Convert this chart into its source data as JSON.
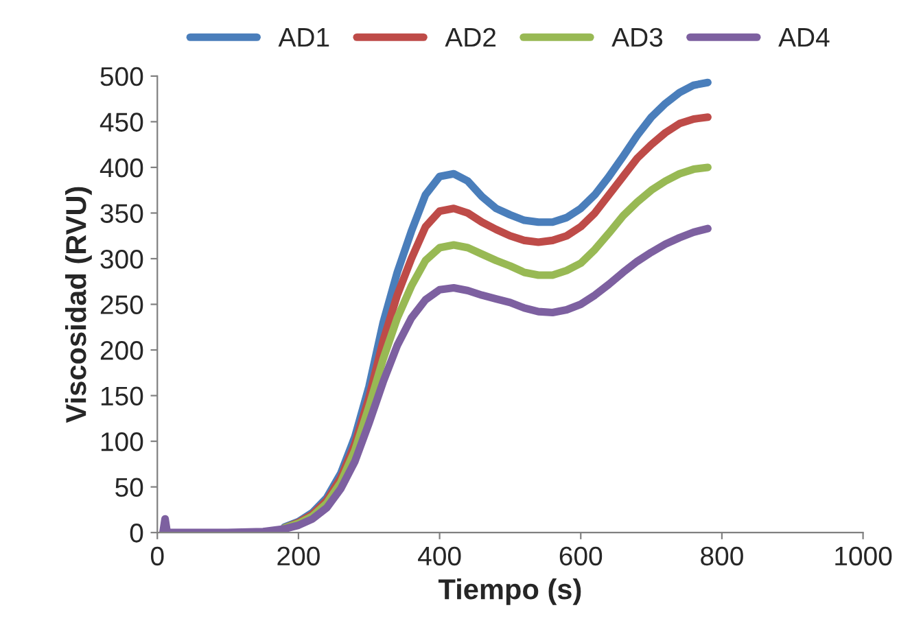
{
  "chart_data": {
    "type": "line",
    "xlabel": "Tiempo (s)",
    "ylabel": "Viscosidad (RVU)",
    "x": [
      180,
      200,
      220,
      240,
      260,
      280,
      300,
      320,
      340,
      360,
      380,
      400,
      420,
      440,
      460,
      480,
      500,
      520,
      540,
      560,
      580,
      600,
      620,
      640,
      660,
      680,
      700,
      720,
      740,
      760,
      780
    ],
    "series": [
      {
        "name": "AD1",
        "color": "#4a7ebb",
        "values": [
          6,
          12,
          22,
          38,
          65,
          105,
          160,
          230,
          285,
          330,
          370,
          390,
          393,
          385,
          368,
          355,
          348,
          342,
          340,
          340,
          345,
          355,
          370,
          390,
          412,
          435,
          455,
          470,
          482,
          490,
          493
        ]
      },
      {
        "name": "AD2",
        "color": "#be4b48",
        "values": [
          5,
          11,
          20,
          35,
          60,
          97,
          148,
          210,
          260,
          300,
          335,
          352,
          355,
          350,
          340,
          332,
          325,
          320,
          318,
          320,
          325,
          335,
          350,
          370,
          390,
          410,
          425,
          438,
          448,
          453,
          455
        ]
      },
      {
        "name": "AD3",
        "color": "#98b954",
        "values": [
          5,
          10,
          18,
          32,
          55,
          90,
          138,
          190,
          235,
          270,
          298,
          312,
          315,
          312,
          305,
          298,
          292,
          285,
          282,
          282,
          287,
          295,
          310,
          328,
          347,
          362,
          375,
          385,
          393,
          398,
          400
        ]
      },
      {
        "name": "AD4",
        "color": "#7d60a0",
        "x": [
          8,
          11,
          14,
          20,
          100,
          150,
          180,
          200,
          220,
          240,
          260,
          280,
          300,
          320,
          340,
          360,
          380,
          400,
          420,
          440,
          460,
          480,
          500,
          520,
          540,
          560,
          580,
          600,
          620,
          640,
          660,
          680,
          700,
          720,
          740,
          760,
          780
        ],
        "values": [
          0,
          15,
          0,
          0,
          0,
          1,
          4,
          8,
          15,
          27,
          48,
          78,
          120,
          165,
          205,
          235,
          255,
          266,
          268,
          265,
          260,
          256,
          252,
          246,
          242,
          241,
          244,
          250,
          260,
          272,
          285,
          297,
          307,
          316,
          323,
          329,
          333
        ]
      }
    ],
    "xlim": [
      0,
      1000
    ],
    "xticks": [
      0,
      200,
      400,
      600,
      800,
      1000
    ],
    "ylim": [
      0,
      500
    ],
    "yticks": [
      0,
      50,
      100,
      150,
      200,
      250,
      300,
      350,
      400,
      450,
      500
    ],
    "grid": false,
    "legend": "top",
    "marker": "none",
    "line_style": "solid"
  }
}
